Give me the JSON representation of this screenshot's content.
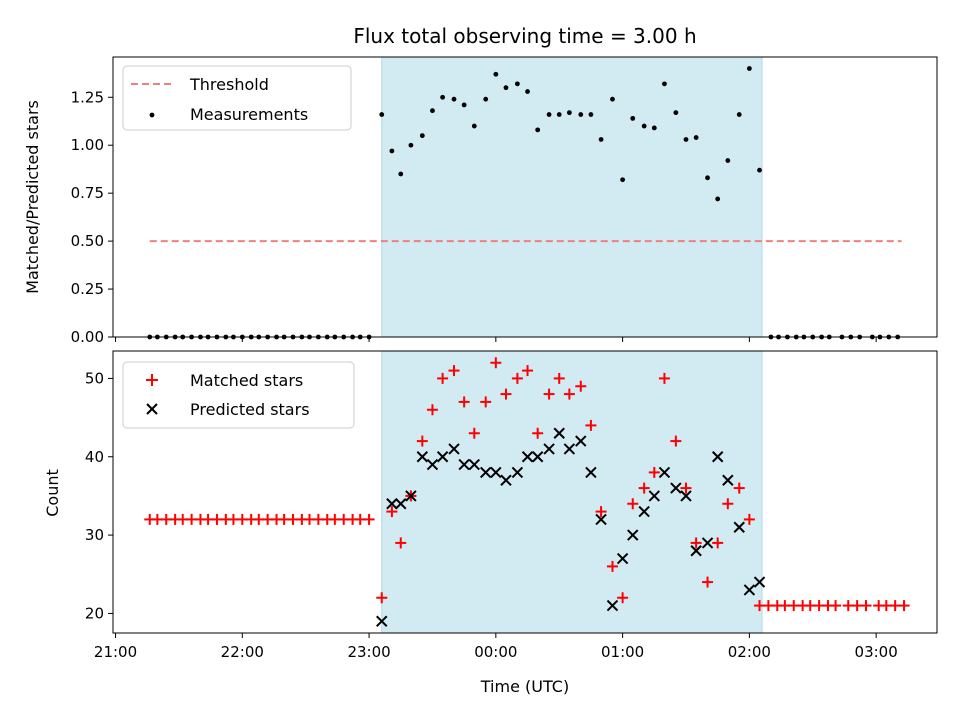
{
  "chart_data": {
    "title": "Flux total observing time = 3.00 h",
    "xlabel": "Time (UTC)",
    "x_ticks": [
      "21:00",
      "22:00",
      "23:00",
      "00:00",
      "01:00",
      "02:00",
      "03:00"
    ],
    "x_tick_hours": [
      21,
      22,
      23,
      24,
      25,
      26,
      27
    ],
    "xlim_hours": [
      20.98,
      27.48
    ],
    "shaded_span_hours": [
      23.1,
      26.1
    ],
    "shade_color": "#add8e6",
    "panels": [
      {
        "type": "scatter",
        "ylabel": "Matched/Predicted stars",
        "ylim": [
          0,
          1.46
        ],
        "yticks": [
          0.0,
          0.25,
          0.5,
          0.75,
          1.0,
          1.25
        ],
        "ytick_labels": [
          "0.00",
          "0.25",
          "0.50",
          "0.75",
          "1.00",
          "1.25"
        ],
        "legend_position": "top-left",
        "threshold": {
          "name": "Threshold",
          "value": 0.5,
          "x_range_hours": [
            21.27,
            27.2
          ],
          "color": "#f08080"
        },
        "series": [
          {
            "name": "Measurements",
            "color": "#000000",
            "points": [
              [
                21.27,
                0
              ],
              [
                21.33,
                0
              ],
              [
                21.4,
                0
              ],
              [
                21.47,
                0
              ],
              [
                21.53,
                0
              ],
              [
                21.6,
                0
              ],
              [
                21.67,
                0
              ],
              [
                21.73,
                0
              ],
              [
                21.8,
                0
              ],
              [
                21.87,
                0
              ],
              [
                21.93,
                0
              ],
              [
                22.0,
                0
              ],
              [
                22.07,
                0
              ],
              [
                22.13,
                0
              ],
              [
                22.2,
                0
              ],
              [
                22.27,
                0
              ],
              [
                22.33,
                0
              ],
              [
                22.4,
                0
              ],
              [
                22.47,
                0
              ],
              [
                22.53,
                0
              ],
              [
                22.6,
                0
              ],
              [
                22.67,
                0
              ],
              [
                22.73,
                0
              ],
              [
                22.8,
                0
              ],
              [
                22.87,
                0
              ],
              [
                22.93,
                0
              ],
              [
                23.0,
                0
              ],
              [
                23.1,
                1.16
              ],
              [
                23.18,
                0.97
              ],
              [
                23.25,
                0.85
              ],
              [
                23.33,
                1.0
              ],
              [
                23.42,
                1.05
              ],
              [
                23.5,
                1.18
              ],
              [
                23.58,
                1.25
              ],
              [
                23.67,
                1.24
              ],
              [
                23.75,
                1.21
              ],
              [
                23.83,
                1.1
              ],
              [
                23.92,
                1.24
              ],
              [
                24.0,
                1.37
              ],
              [
                24.08,
                1.3
              ],
              [
                24.17,
                1.32
              ],
              [
                24.25,
                1.28
              ],
              [
                24.33,
                1.08
              ],
              [
                24.42,
                1.16
              ],
              [
                24.5,
                1.16
              ],
              [
                24.58,
                1.17
              ],
              [
                24.67,
                1.16
              ],
              [
                24.75,
                1.16
              ],
              [
                24.83,
                1.03
              ],
              [
                24.92,
                1.24
              ],
              [
                25.0,
                0.82
              ],
              [
                25.08,
                1.14
              ],
              [
                25.17,
                1.1
              ],
              [
                25.25,
                1.09
              ],
              [
                25.33,
                1.32
              ],
              [
                25.42,
                1.17
              ],
              [
                25.5,
                1.03
              ],
              [
                25.58,
                1.04
              ],
              [
                25.67,
                0.83
              ],
              [
                25.75,
                0.72
              ],
              [
                25.83,
                0.92
              ],
              [
                25.92,
                1.16
              ],
              [
                26.0,
                1.4
              ],
              [
                26.08,
                0.87
              ],
              [
                26.17,
                0
              ],
              [
                26.23,
                0
              ],
              [
                26.3,
                0
              ],
              [
                26.37,
                0
              ],
              [
                26.43,
                0
              ],
              [
                26.5,
                0
              ],
              [
                26.57,
                0
              ],
              [
                26.63,
                0
              ],
              [
                26.73,
                0
              ],
              [
                26.8,
                0
              ],
              [
                26.87,
                0
              ],
              [
                26.97,
                0
              ],
              [
                27.03,
                0
              ],
              [
                27.1,
                0
              ],
              [
                27.17,
                0
              ]
            ]
          }
        ]
      },
      {
        "type": "scatter",
        "ylabel": "Count",
        "ylim": [
          17.5,
          53.5
        ],
        "yticks": [
          20,
          30,
          40,
          50
        ],
        "ytick_labels": [
          "20",
          "30",
          "40",
          "50"
        ],
        "legend_position": "top-left",
        "series": [
          {
            "name": "Matched stars",
            "marker": "plus",
            "color": "#ff0000",
            "points": [
              [
                21.27,
                32
              ],
              [
                21.33,
                32
              ],
              [
                21.4,
                32
              ],
              [
                21.47,
                32
              ],
              [
                21.53,
                32
              ],
              [
                21.6,
                32
              ],
              [
                21.67,
                32
              ],
              [
                21.73,
                32
              ],
              [
                21.8,
                32
              ],
              [
                21.87,
                32
              ],
              [
                21.93,
                32
              ],
              [
                22.0,
                32
              ],
              [
                22.07,
                32
              ],
              [
                22.13,
                32
              ],
              [
                22.2,
                32
              ],
              [
                22.27,
                32
              ],
              [
                22.33,
                32
              ],
              [
                22.4,
                32
              ],
              [
                22.47,
                32
              ],
              [
                22.53,
                32
              ],
              [
                22.6,
                32
              ],
              [
                22.67,
                32
              ],
              [
                22.73,
                32
              ],
              [
                22.8,
                32
              ],
              [
                22.87,
                32
              ],
              [
                22.93,
                32
              ],
              [
                23.0,
                32
              ],
              [
                23.1,
                22
              ],
              [
                23.18,
                33
              ],
              [
                23.25,
                29
              ],
              [
                23.33,
                35
              ],
              [
                23.42,
                42
              ],
              [
                23.5,
                46
              ],
              [
                23.58,
                50
              ],
              [
                23.67,
                51
              ],
              [
                23.75,
                47
              ],
              [
                23.83,
                43
              ],
              [
                23.92,
                47
              ],
              [
                24.0,
                52
              ],
              [
                24.08,
                48
              ],
              [
                24.17,
                50
              ],
              [
                24.25,
                51
              ],
              [
                24.33,
                43
              ],
              [
                24.42,
                48
              ],
              [
                24.5,
                50
              ],
              [
                24.58,
                48
              ],
              [
                24.67,
                49
              ],
              [
                24.75,
                44
              ],
              [
                24.83,
                33
              ],
              [
                24.92,
                26
              ],
              [
                25.0,
                22
              ],
              [
                25.08,
                34
              ],
              [
                25.17,
                36
              ],
              [
                25.25,
                38
              ],
              [
                25.33,
                50
              ],
              [
                25.42,
                42
              ],
              [
                25.5,
                36
              ],
              [
                25.58,
                29
              ],
              [
                25.67,
                24
              ],
              [
                25.75,
                29
              ],
              [
                25.83,
                34
              ],
              [
                25.92,
                36
              ],
              [
                26.0,
                32
              ],
              [
                26.08,
                21
              ],
              [
                26.15,
                21
              ],
              [
                26.22,
                21
              ],
              [
                26.28,
                21
              ],
              [
                26.35,
                21
              ],
              [
                26.42,
                21
              ],
              [
                26.48,
                21
              ],
              [
                26.55,
                21
              ],
              [
                26.62,
                21
              ],
              [
                26.68,
                21
              ],
              [
                26.78,
                21
              ],
              [
                26.85,
                21
              ],
              [
                26.92,
                21
              ],
              [
                27.02,
                21
              ],
              [
                27.08,
                21
              ],
              [
                27.15,
                21
              ],
              [
                27.22,
                21
              ]
            ]
          },
          {
            "name": "Predicted stars",
            "marker": "x",
            "color": "#000000",
            "points": [
              [
                23.1,
                19
              ],
              [
                23.18,
                34
              ],
              [
                23.25,
                34
              ],
              [
                23.33,
                35
              ],
              [
                23.42,
                40
              ],
              [
                23.5,
                39
              ],
              [
                23.58,
                40
              ],
              [
                23.67,
                41
              ],
              [
                23.75,
                39
              ],
              [
                23.83,
                39
              ],
              [
                23.92,
                38
              ],
              [
                24.0,
                38
              ],
              [
                24.08,
                37
              ],
              [
                24.17,
                38
              ],
              [
                24.25,
                40
              ],
              [
                24.33,
                40
              ],
              [
                24.42,
                41
              ],
              [
                24.5,
                43
              ],
              [
                24.58,
                41
              ],
              [
                24.67,
                42
              ],
              [
                24.75,
                38
              ],
              [
                24.83,
                32
              ],
              [
                24.92,
                21
              ],
              [
                25.0,
                27
              ],
              [
                25.08,
                30
              ],
              [
                25.17,
                33
              ],
              [
                25.25,
                35
              ],
              [
                25.33,
                38
              ],
              [
                25.42,
                36
              ],
              [
                25.5,
                35
              ],
              [
                25.58,
                28
              ],
              [
                25.67,
                29
              ],
              [
                25.75,
                40
              ],
              [
                25.83,
                37
              ],
              [
                25.92,
                31
              ],
              [
                26.0,
                23
              ],
              [
                26.08,
                24
              ]
            ]
          }
        ]
      }
    ]
  }
}
